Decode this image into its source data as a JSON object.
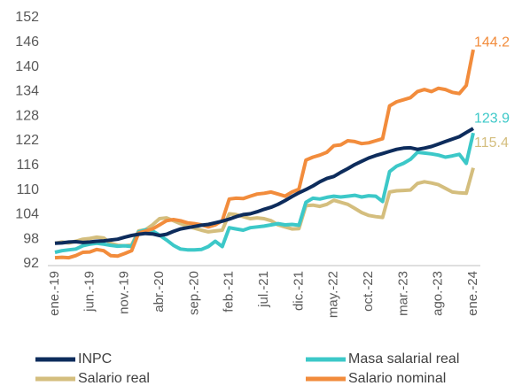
{
  "chart_data": {
    "type": "line",
    "categories": [
      "ene.-19",
      null,
      null,
      null,
      null,
      "jun.-19",
      null,
      null,
      null,
      null,
      "nov.-19",
      null,
      null,
      null,
      null,
      "abr.-20",
      null,
      null,
      null,
      null,
      "sep.-20",
      null,
      null,
      null,
      null,
      "feb.-21",
      null,
      null,
      null,
      null,
      "jul.-21",
      null,
      null,
      null,
      null,
      "dic.-21",
      null,
      null,
      null,
      null,
      "may.-22",
      null,
      null,
      null,
      null,
      "oct.-22",
      null,
      null,
      null,
      null,
      "mar.-23",
      null,
      null,
      null,
      null,
      "ago.-23",
      null,
      null,
      null,
      null,
      "ene.-24"
    ],
    "series": [
      {
        "name": "INPC",
        "color": "#0d2c5c",
        "values": [
          97.0,
          97.1,
          97.3,
          97.4,
          97.2,
          97.3,
          97.5,
          97.6,
          97.8,
          98.0,
          98.5,
          98.9,
          99.2,
          99.4,
          99.3,
          98.9,
          99.2,
          99.9,
          100.5,
          100.8,
          101.1,
          101.4,
          101.6,
          102.0,
          102.4,
          102.9,
          103.5,
          104.0,
          104.2,
          104.7,
          105.3,
          105.8,
          106.5,
          107.4,
          108.4,
          109.3,
          110.1,
          111.0,
          112.0,
          112.8,
          113.3,
          114.3,
          115.2,
          116.2,
          117.0,
          117.8,
          118.4,
          118.9,
          119.4,
          119.9,
          120.2,
          120.3,
          119.9,
          120.2,
          120.6,
          121.2,
          121.8,
          122.4,
          123.0,
          124.0,
          125.0
        ]
      },
      {
        "name": "Masa salarial real",
        "color": "#3cc8c8",
        "values": [
          94.8,
          95.2,
          95.4,
          95.6,
          96.4,
          96.8,
          97.0,
          96.8,
          96.5,
          96.3,
          96.4,
          96.2,
          99.8,
          100.3,
          100.0,
          99.0,
          97.8,
          96.5,
          95.6,
          95.4,
          95.4,
          95.5,
          96.2,
          97.5,
          96.2,
          100.8,
          100.5,
          100.2,
          100.8,
          101.0,
          101.2,
          101.5,
          101.8,
          101.5,
          101.6,
          101.4,
          107.0,
          108.0,
          107.8,
          108.2,
          108.5,
          108.3,
          108.5,
          108.7,
          108.3,
          108.6,
          108.5,
          107.2,
          114.5,
          115.8,
          116.5,
          117.5,
          119.2,
          119.0,
          118.8,
          118.5,
          118.0,
          118.3,
          118.7,
          116.5,
          123.9
        ]
      },
      {
        "name": "Salario real",
        "color": "#d4be7e",
        "values": [
          97.0,
          97.3,
          97.1,
          97.5,
          98.0,
          98.2,
          98.5,
          98.3,
          97.0,
          96.5,
          96.4,
          96.6,
          100.0,
          100.3,
          101.5,
          103.0,
          103.2,
          102.5,
          101.8,
          101.2,
          100.7,
          100.2,
          99.8,
          100.0,
          100.2,
          104.2,
          104.0,
          103.5,
          103.0,
          103.2,
          103.0,
          102.5,
          101.5,
          101.0,
          100.5,
          100.6,
          106.2,
          106.3,
          106.0,
          106.5,
          107.5,
          107.0,
          106.5,
          105.5,
          104.5,
          103.8,
          103.5,
          103.3,
          109.5,
          109.8,
          109.9,
          110.0,
          111.6,
          112.0,
          111.7,
          111.3,
          110.4,
          109.5,
          109.3,
          109.2,
          115.4
        ]
      },
      {
        "name": "Salario nominal",
        "color": "#f28c3c",
        "values": [
          93.5,
          93.6,
          93.5,
          94.0,
          94.8,
          94.9,
          95.5,
          95.2,
          94.0,
          93.9,
          94.5,
          95.2,
          99.5,
          100.0,
          100.5,
          101.5,
          102.5,
          102.8,
          102.5,
          102.0,
          101.8,
          101.5,
          101.0,
          101.5,
          102.5,
          107.8,
          108.0,
          107.9,
          108.5,
          109.0,
          109.2,
          109.5,
          109.0,
          108.5,
          109.5,
          110.2,
          117.3,
          118.0,
          118.5,
          119.2,
          120.8,
          121.0,
          122.0,
          121.8,
          121.3,
          121.5,
          122.0,
          122.5,
          130.5,
          131.5,
          132.0,
          132.5,
          134.0,
          134.5,
          134.0,
          134.8,
          134.5,
          133.8,
          133.5,
          135.5,
          144.2
        ]
      }
    ],
    "ylim": [
      92,
      152
    ],
    "yticks": [
      92,
      98,
      104,
      110,
      116,
      122,
      128,
      134,
      140,
      146,
      152
    ],
    "grid": false
  }
}
